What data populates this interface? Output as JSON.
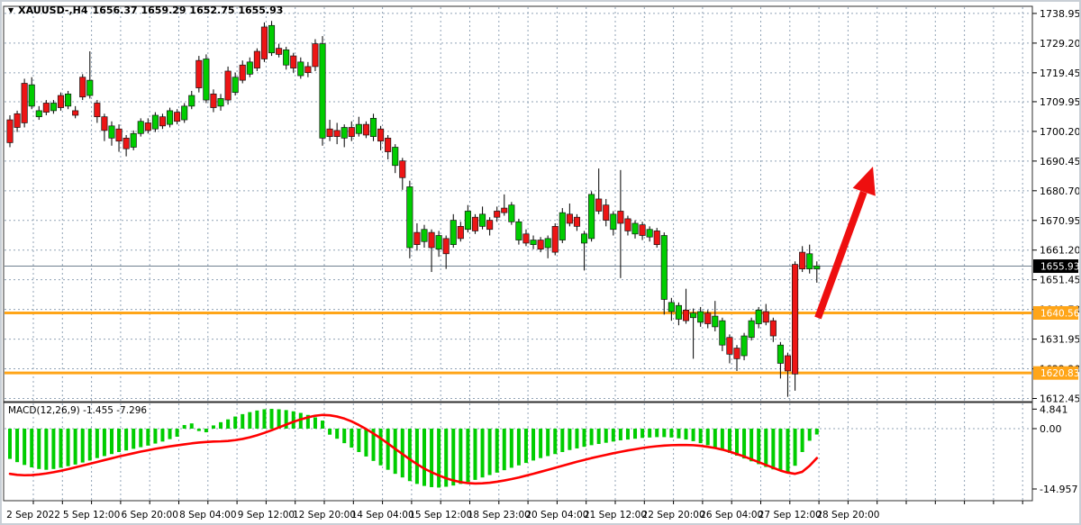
{
  "title": {
    "symbol_period": "XAUUSD-,H4",
    "ohlc_values": "1656.37 1659.29 1652.75 1655.93"
  },
  "macd_panel": {
    "label": "MACD(12,26,9) -1.455 -7.296"
  },
  "colors": {
    "candle_up_fill": "#00CD00",
    "candle_down_fill": "#ED1515",
    "candle_outline": "#151515",
    "grid": "#91A3B6",
    "level_line": "#FFA518",
    "bid_line": "#6E7F8F",
    "macd_histogram": "#00CD00",
    "macd_signal": "#FF0000",
    "arrow": "#EE0F0F",
    "current_badge_bg": "#000000",
    "level_badge_bg": "#FFA518"
  },
  "chart_data": {
    "type": "candlestick",
    "symbol": "XAUUSD",
    "period": "H4",
    "y_ticks": [
      "1738.95",
      "1729.20",
      "1719.45",
      "1709.95",
      "1700.20",
      "1690.45",
      "1680.70",
      "1670.95",
      "1661.20",
      "1651.45",
      "1641.70",
      "1631.95",
      "1622.20",
      "1612.45"
    ],
    "x_labels": [
      "2 Sep 2022",
      "5 Sep 12:00",
      "6 Sep 20:00",
      "8 Sep 04:00",
      "9 Sep 12:00",
      "12 Sep 20:00",
      "14 Sep 04:00",
      "15 Sep 12:00",
      "18 Sep 23:00",
      "20 Sep 04:00",
      "21 Sep 12:00",
      "22 Sep 20:00",
      "26 Sep 04:00",
      "27 Sep 12:00",
      "28 Sep 20:00"
    ],
    "current_price": {
      "price": 1655.93,
      "label": "1655.93"
    },
    "levels": [
      {
        "price": 1640.56,
        "label": "1640.56"
      },
      {
        "price": 1620.83,
        "label": "1620.83"
      }
    ],
    "candles_format": [
      "body_top",
      "body_bottom",
      "high",
      "low",
      "color(g=green,r=red)"
    ],
    "candles": [
      [
        1704,
        1696.5,
        1705.5,
        1695,
        "r"
      ],
      [
        1706,
        1701.5,
        1707,
        1700,
        "r"
      ],
      [
        1716,
        1703,
        1717.5,
        1701.5,
        "r"
      ],
      [
        1715.5,
        1708.5,
        1718,
        1707.5,
        "g"
      ],
      [
        1707,
        1705,
        1708.5,
        1704,
        "g"
      ],
      [
        1709.5,
        1706.5,
        1710.5,
        1705.5,
        "r"
      ],
      [
        1709.5,
        1707,
        1710.5,
        1706,
        "g"
      ],
      [
        1712,
        1708,
        1713,
        1707,
        "r"
      ],
      [
        1712.5,
        1708.5,
        1713.5,
        1707.5,
        "g"
      ],
      [
        1707,
        1705.5,
        1708.5,
        1704.5,
        "r"
      ],
      [
        1718,
        1711.5,
        1719,
        1710.5,
        "r"
      ],
      [
        1717,
        1712,
        1726.5,
        1711,
        "g"
      ],
      [
        1709.5,
        1705,
        1710.5,
        1703,
        "r"
      ],
      [
        1705,
        1700.5,
        1706,
        1697,
        "r"
      ],
      [
        1702,
        1698,
        1703.5,
        1695.5,
        "g"
      ],
      [
        1701,
        1697,
        1702.5,
        1693.5,
        "r"
      ],
      [
        1698,
        1694.5,
        1699,
        1692,
        "r"
      ],
      [
        1699.5,
        1695,
        1700.5,
        1694,
        "g"
      ],
      [
        1703.5,
        1699.5,
        1704.5,
        1698.5,
        "g"
      ],
      [
        1703,
        1700.5,
        1704.5,
        1699.5,
        "r"
      ],
      [
        1705.5,
        1701,
        1706.5,
        1700,
        "g"
      ],
      [
        1705,
        1702,
        1706,
        1701,
        "r"
      ],
      [
        1707,
        1702.5,
        1708,
        1701.5,
        "g"
      ],
      [
        1706.5,
        1703.5,
        1707.5,
        1702.5,
        "r"
      ],
      [
        1708.5,
        1704,
        1709.5,
        1703,
        "g"
      ],
      [
        1712,
        1708.5,
        1713.5,
        1707.5,
        "g"
      ],
      [
        1723.5,
        1714.5,
        1725,
        1713,
        "r"
      ],
      [
        1724,
        1710.5,
        1725.5,
        1709.5,
        "g"
      ],
      [
        1712.5,
        1708,
        1714,
        1706.5,
        "r"
      ],
      [
        1711,
        1708.5,
        1712.5,
        1707,
        "g"
      ],
      [
        1720,
        1710.5,
        1721.5,
        1709,
        "r"
      ],
      [
        1718,
        1713,
        1719.5,
        1712,
        "g"
      ],
      [
        1722,
        1717,
        1723.5,
        1716,
        "r"
      ],
      [
        1723,
        1719,
        1724.5,
        1718,
        "g"
      ],
      [
        1726.5,
        1721,
        1727.5,
        1720,
        "r"
      ],
      [
        1734.5,
        1724,
        1736,
        1723,
        "r"
      ],
      [
        1735,
        1726,
        1736.5,
        1725,
        "g"
      ],
      [
        1727.5,
        1725.5,
        1729,
        1724.5,
        "r"
      ],
      [
        1727,
        1722,
        1728,
        1720.5,
        "g"
      ],
      [
        1725,
        1721,
        1726,
        1719.5,
        "r"
      ],
      [
        1723,
        1718.5,
        1724.5,
        1717.5,
        "g"
      ],
      [
        1721.5,
        1719.5,
        1723,
        1718,
        "r"
      ],
      [
        1729,
        1721.5,
        1730.5,
        1720,
        "r"
      ],
      [
        1729,
        1698,
        1731.5,
        1695.5,
        "g"
      ],
      [
        1701,
        1698.5,
        1704,
        1697,
        "r"
      ],
      [
        1700.5,
        1698.5,
        1703,
        1696,
        "r"
      ],
      [
        1701.5,
        1698,
        1702.5,
        1695,
        "g"
      ],
      [
        1701.5,
        1698.5,
        1703.5,
        1697,
        "r"
      ],
      [
        1702.5,
        1699.5,
        1705,
        1698.5,
        "g"
      ],
      [
        1702.5,
        1699,
        1703.5,
        1698,
        "r"
      ],
      [
        1704.5,
        1698.5,
        1706,
        1697,
        "g"
      ],
      [
        1701,
        1697,
        1702,
        1694,
        "r"
      ],
      [
        1698,
        1693.5,
        1699,
        1691,
        "r"
      ],
      [
        1695,
        1689,
        1696,
        1686.5,
        "g"
      ],
      [
        1690.5,
        1685,
        1691.5,
        1681,
        "r"
      ],
      [
        1682,
        1662,
        1684,
        1658.5,
        "g"
      ],
      [
        1667,
        1663,
        1670,
        1661,
        "r"
      ],
      [
        1668,
        1664,
        1669.5,
        1662,
        "g"
      ],
      [
        1667,
        1662,
        1668,
        1654,
        "r"
      ],
      [
        1666,
        1661.5,
        1667.5,
        1659,
        "g"
      ],
      [
        1665,
        1660,
        1666,
        1655,
        "r"
      ],
      [
        1671,
        1663,
        1673,
        1662,
        "g"
      ],
      [
        1669,
        1665,
        1670.5,
        1664,
        "r"
      ],
      [
        1674,
        1668,
        1676,
        1667,
        "g"
      ],
      [
        1672,
        1667.5,
        1673,
        1666.5,
        "r"
      ],
      [
        1673,
        1669,
        1675.5,
        1668,
        "g"
      ],
      [
        1671,
        1668,
        1672,
        1666,
        "r"
      ],
      [
        1674,
        1672,
        1675.5,
        1670.5,
        "r"
      ],
      [
        1675,
        1673.5,
        1679.5,
        1672.5,
        "r"
      ],
      [
        1676,
        1670.5,
        1677,
        1669.5,
        "g"
      ],
      [
        1670.5,
        1664.5,
        1671.5,
        1663,
        "g"
      ],
      [
        1666.5,
        1663.5,
        1668,
        1662.5,
        "r"
      ],
      [
        1664.5,
        1663,
        1666,
        1661.5,
        "g"
      ],
      [
        1664.5,
        1661.5,
        1665.5,
        1660.5,
        "r"
      ],
      [
        1665,
        1662,
        1666,
        1658.5,
        "g"
      ],
      [
        1669,
        1660.5,
        1670,
        1659.5,
        "r"
      ],
      [
        1673.5,
        1664.5,
        1675,
        1663.5,
        "g"
      ],
      [
        1673,
        1670,
        1676.5,
        1669,
        "r"
      ],
      [
        1672,
        1669,
        1673,
        1667.5,
        "r"
      ],
      [
        1666.5,
        1663.5,
        1667.5,
        1654.5,
        "g"
      ],
      [
        1679.5,
        1665,
        1680.5,
        1664,
        "g"
      ],
      [
        1678,
        1674,
        1688,
        1673,
        "r"
      ],
      [
        1676,
        1671,
        1678,
        1669,
        "r"
      ],
      [
        1673,
        1668,
        1674,
        1666,
        "g"
      ],
      [
        1674,
        1670,
        1687.5,
        1652,
        "r"
      ],
      [
        1671.5,
        1667.5,
        1672.5,
        1666,
        "r"
      ],
      [
        1670,
        1666.5,
        1671,
        1665,
        "g"
      ],
      [
        1669.5,
        1666,
        1670.5,
        1664.5,
        "r"
      ],
      [
        1668,
        1665.5,
        1669,
        1664,
        "g"
      ],
      [
        1667.5,
        1663,
        1668.5,
        1662,
        "r"
      ],
      [
        1666,
        1645,
        1667,
        1640,
        "g"
      ],
      [
        1644,
        1641,
        1645.5,
        1638,
        "g"
      ],
      [
        1643,
        1638.5,
        1644,
        1636.5,
        "g"
      ],
      [
        1641.5,
        1638,
        1648.5,
        1637,
        "r"
      ],
      [
        1640.5,
        1639,
        1642,
        1625.5,
        "g"
      ],
      [
        1641,
        1637.5,
        1642.5,
        1636,
        "g"
      ],
      [
        1640.5,
        1637,
        1641.5,
        1635.5,
        "r"
      ],
      [
        1639.5,
        1636,
        1644.5,
        1634.5,
        "g"
      ],
      [
        1638,
        1630,
        1639,
        1628,
        "g"
      ],
      [
        1632.5,
        1627,
        1633.5,
        1624,
        "r"
      ],
      [
        1629,
        1625.5,
        1630,
        1621.5,
        "r"
      ],
      [
        1633,
        1626.5,
        1634,
        1625,
        "g"
      ],
      [
        1638,
        1632.5,
        1639,
        1631.5,
        "g"
      ],
      [
        1641.5,
        1637,
        1642.5,
        1635.5,
        "g"
      ],
      [
        1641,
        1637.5,
        1643.5,
        1636.5,
        "r"
      ],
      [
        1638,
        1633,
        1639,
        1631,
        "r"
      ],
      [
        1630,
        1624,
        1631,
        1619,
        "g"
      ],
      [
        1626.5,
        1621.5,
        1627.5,
        1613,
        "r"
      ],
      [
        1656.5,
        1620.5,
        1657.5,
        1615,
        "r"
      ],
      [
        1660.5,
        1655,
        1662.5,
        1654,
        "r"
      ],
      [
        1660,
        1655,
        1663,
        1653.5,
        "g"
      ],
      [
        1656,
        1655,
        1657.5,
        1650.5,
        "g"
      ]
    ],
    "macd": {
      "params": "12,26,9",
      "main_value": -1.455,
      "signal_value": -7.296,
      "y_ticks": [
        "4.841",
        "0.00",
        "-14.957"
      ],
      "histogram": [
        -7.5,
        -8.3,
        -9,
        -9.6,
        -10,
        -10.2,
        -10,
        -9.7,
        -9.3,
        -8.9,
        -8.4,
        -7.9,
        -7.3,
        -6.8,
        -6.3,
        -5.8,
        -5.4,
        -5,
        -4.6,
        -4.2,
        -3.7,
        -3.2,
        -2.6,
        -2,
        0.9,
        1.3,
        -0.6,
        -0.9,
        0.8,
        1.6,
        2.3,
        3,
        3.6,
        4.1,
        4.5,
        4.8,
        4.9,
        4.8,
        4.6,
        4.3,
        3.9,
        3.4,
        2.8,
        2,
        -1.5,
        -2.5,
        -3.6,
        -4.7,
        -5.8,
        -6.9,
        -8,
        -9.1,
        -10.2,
        -11.2,
        -12.1,
        -13,
        -13.7,
        -14.2,
        -14.5,
        -14.6,
        -14.4,
        -14.1,
        -13.7,
        -13.2,
        -12.7,
        -12.1,
        -11.5,
        -10.9,
        -10.3,
        -9.7,
        -9.1,
        -8.5,
        -7.9,
        -7.3,
        -6.8,
        -6.3,
        -5.8,
        -5.3,
        -4.9,
        -4.5,
        -4.1,
        -3.8,
        -3.5,
        -3.2,
        -2.9,
        -2.7,
        -2.5,
        -2.3,
        -2.2,
        -2.1,
        -2.1,
        -2.2,
        -2.4,
        -2.7,
        -3.1,
        -3.6,
        -4.1,
        -4.7,
        -5.3,
        -6,
        -6.7,
        -7.4,
        -8.1,
        -8.8,
        -9.5,
        -10.1,
        -10.5,
        -10.7,
        -9.2,
        -5.8,
        -3,
        -1.455
      ],
      "signal": [
        -11.2,
        -11.45,
        -11.55,
        -11.5,
        -11.35,
        -11.1,
        -10.8,
        -10.45,
        -10.05,
        -9.6,
        -9.15,
        -8.7,
        -8.25,
        -7.8,
        -7.35,
        -6.9,
        -6.5,
        -6.1,
        -5.7,
        -5.35,
        -5,
        -4.7,
        -4.4,
        -4.15,
        -3.9,
        -3.65,
        -3.45,
        -3.3,
        -3.2,
        -3.15,
        -3.05,
        -2.85,
        -2.55,
        -2.15,
        -1.65,
        -1.05,
        -0.4,
        0.3,
        1,
        1.7,
        2.3,
        2.8,
        3.2,
        3.4,
        3.3,
        3,
        2.5,
        1.8,
        0.9,
        -0.1,
        -1.2,
        -2.4,
        -3.7,
        -5,
        -6.3,
        -7.6,
        -8.8,
        -9.9,
        -10.8,
        -11.6,
        -12.3,
        -12.85,
        -13.25,
        -13.5,
        -13.6,
        -13.55,
        -13.4,
        -13.15,
        -12.85,
        -12.5,
        -12.1,
        -11.65,
        -11.2,
        -10.7,
        -10.2,
        -9.7,
        -9.2,
        -8.7,
        -8.2,
        -7.75,
        -7.3,
        -6.9,
        -6.5,
        -6.1,
        -5.75,
        -5.4,
        -5.1,
        -4.8,
        -4.55,
        -4.35,
        -4.2,
        -4.1,
        -4.05,
        -4.05,
        -4.1,
        -4.25,
        -4.5,
        -4.8,
        -5.2,
        -5.7,
        -6.3,
        -6.9,
        -7.6,
        -8.3,
        -9,
        -9.7,
        -10.4,
        -10.9,
        -11.2,
        -10.7,
        -9.2,
        -7.296
      ]
    },
    "annotations": [
      {
        "type": "arrow-up",
        "color": "#EE0F0F"
      }
    ],
    "grid": true,
    "legend_position": "none"
  }
}
